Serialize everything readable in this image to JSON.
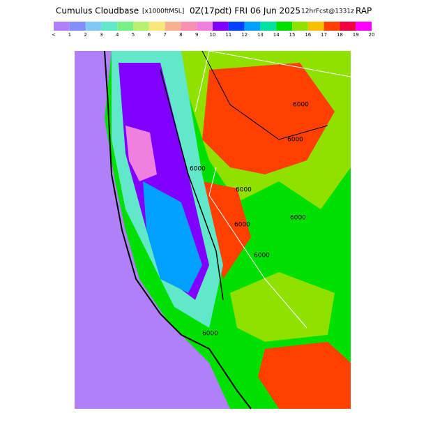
{
  "header": {
    "title": "Cumulus Cloudbase",
    "units": "[x1000ftMSL]",
    "valid": "0Z(17pdt) FRI 06 Jun 2025",
    "forecast": "12hrFcst@1331z",
    "model": "RAP"
  },
  "colorbar": {
    "colors": [
      "#b080f8",
      "#8090f8",
      "#80c8f8",
      "#60e8c8",
      "#78f088",
      "#b8f070",
      "#f8e878",
      "#f8b090",
      "#f890b0",
      "#f080e0",
      "#8000ff",
      "#0040ff",
      "#00a0ff",
      "#00e0a0",
      "#00e000",
      "#90e000",
      "#f8c000",
      "#ff4000",
      "#f00040",
      "#ff00ff"
    ],
    "labels": [
      "<",
      "1",
      "2",
      "3",
      "4",
      "5",
      "6",
      "7",
      "8",
      "9",
      "10",
      "11",
      "12",
      "13",
      "14",
      "15",
      "16",
      "17",
      "18",
      "19",
      "20"
    ]
  },
  "contour_labels": [
    "6000",
    "6000",
    "6000",
    "6000",
    "6000",
    "6000",
    "6000",
    "6000"
  ]
}
